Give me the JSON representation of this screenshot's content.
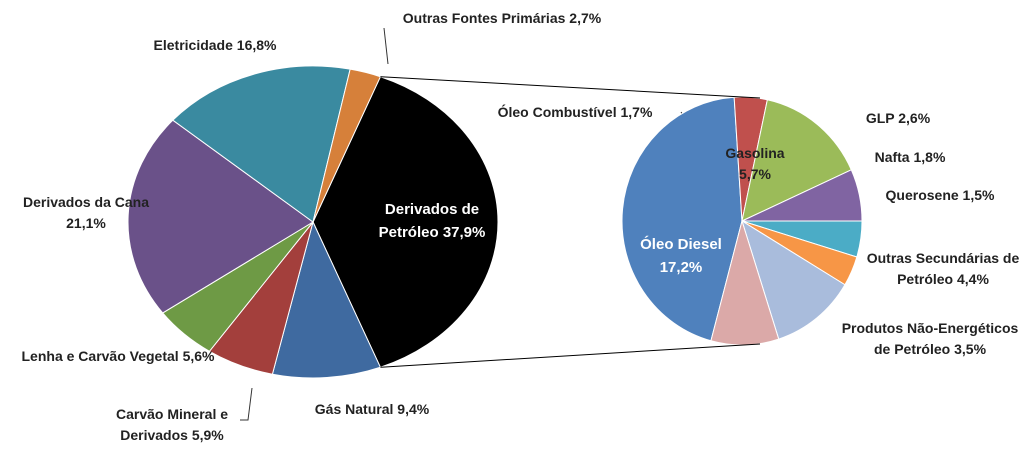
{
  "chart_data": [
    {
      "type": "pie",
      "categories": [
        "Derivados de Petróleo",
        "Gás Natural",
        "Carvão Mineral e Derivados",
        "Lenha e Carvão Vegetal",
        "Derivados da Cana",
        "Eletricidade",
        "Outras Fontes Primárias"
      ],
      "values": [
        37.9,
        9.4,
        5.9,
        5.6,
        21.1,
        16.8,
        2.7
      ],
      "value_labels": [
        "37,9%",
        "9,4%",
        "5,9%",
        "5,6%",
        "21,1%",
        "16,8%",
        "2,7%"
      ],
      "colors": [
        "#000000",
        "#3f6aa0",
        "#a33f3c",
        "#6e9a45",
        "#6a5189",
        "#3a8aa0",
        "#d6803a"
      ]
    },
    {
      "type": "pie",
      "categories": [
        "Óleo Diesel",
        "Óleo Combustível",
        "Gasolina",
        "GLP",
        "Nafta",
        "Querosene",
        "Outras Secundárias de Petróleo",
        "Produtos Não-Energéticos de Petróleo"
      ],
      "values": [
        17.2,
        1.7,
        5.7,
        2.6,
        1.8,
        1.5,
        4.4,
        3.5
      ],
      "value_labels": [
        "17,2%",
        "1,7%",
        "5,7%",
        "2,6%",
        "1,8%",
        "1,5%",
        "4,4%",
        "3,5%"
      ],
      "colors": [
        "#4f81bd",
        "#c0504d",
        "#9bbb59",
        "#8064a2",
        "#4bacc6",
        "#f79646",
        "#a9bcdc",
        "#dba9a8"
      ]
    }
  ]
}
